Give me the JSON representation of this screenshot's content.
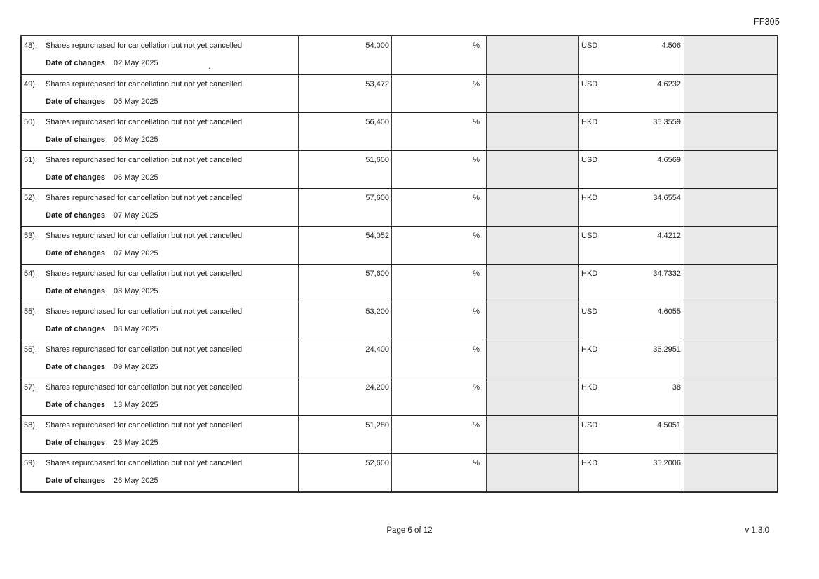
{
  "page": {
    "form_code": "FF305",
    "footer": {
      "page_indicator": "Page 6 of 12",
      "version": "v 1.3.0"
    },
    "stray_mark": "."
  },
  "table": {
    "rows": [
      {
        "number": "48).",
        "description": "Shares repurchased for cancellation but not yet cancelled",
        "quantity": "54,000",
        "percent": "%",
        "currency": "USD",
        "price": "4.506",
        "date_label": "Date of changes",
        "date": "02 May 2025"
      },
      {
        "number": "49).",
        "description": "Shares repurchased for cancellation but not yet cancelled",
        "quantity": "53,472",
        "percent": "%",
        "currency": "USD",
        "price": "4.6232",
        "date_label": "Date of changes",
        "date": "05 May 2025"
      },
      {
        "number": "50).",
        "description": "Shares repurchased for cancellation but not yet cancelled",
        "quantity": "56,400",
        "percent": "%",
        "currency": "HKD",
        "price": "35.3559",
        "date_label": "Date of changes",
        "date": "06 May 2025"
      },
      {
        "number": "51).",
        "description": "Shares repurchased for cancellation but not yet cancelled",
        "quantity": "51,600",
        "percent": "%",
        "currency": "USD",
        "price": "4.6569",
        "date_label": "Date of changes",
        "date": "06 May 2025"
      },
      {
        "number": "52).",
        "description": "Shares repurchased for cancellation but not yet cancelled",
        "quantity": "57,600",
        "percent": "%",
        "currency": "HKD",
        "price": "34.6554",
        "date_label": "Date of changes",
        "date": "07 May 2025"
      },
      {
        "number": "53).",
        "description": "Shares repurchased for cancellation but not yet cancelled",
        "quantity": "54,052",
        "percent": "%",
        "currency": "USD",
        "price": "4.4212",
        "date_label": "Date of changes",
        "date": "07 May 2025"
      },
      {
        "number": "54).",
        "description": "Shares repurchased for cancellation but not yet cancelled",
        "quantity": "57,600",
        "percent": "%",
        "currency": "HKD",
        "price": "34.7332",
        "date_label": "Date of changes",
        "date": "08 May 2025"
      },
      {
        "number": "55).",
        "description": "Shares repurchased for cancellation but not yet cancelled",
        "quantity": "53,200",
        "percent": "%",
        "currency": "USD",
        "price": "4.6055",
        "date_label": "Date of changes",
        "date": "08 May 2025"
      },
      {
        "number": "56).",
        "description": "Shares repurchased for cancellation but not yet cancelled",
        "quantity": "24,400",
        "percent": "%",
        "currency": "HKD",
        "price": "36.2951",
        "date_label": "Date of changes",
        "date": "09 May 2025"
      },
      {
        "number": "57).",
        "description": "Shares repurchased for cancellation but not yet cancelled",
        "quantity": "24,200",
        "percent": "%",
        "currency": "HKD",
        "price": "38",
        "date_label": "Date of changes",
        "date": "13 May 2025"
      },
      {
        "number": "58).",
        "description": "Shares repurchased for cancellation but not yet cancelled",
        "quantity": "51,280",
        "percent": "%",
        "currency": "USD",
        "price": "4.5051",
        "date_label": "Date of changes",
        "date": "23 May 2025"
      },
      {
        "number": "59).",
        "description": "Shares repurchased for cancellation but not yet cancelled",
        "quantity": "52,600",
        "percent": "%",
        "currency": "HKD",
        "price": "35.2006",
        "date_label": "Date of changes",
        "date": "26 May 2025"
      }
    ]
  },
  "colors": {
    "cell_shading": "#e9e9e9",
    "border": "#2d2d2d",
    "text": "#1c1c1c"
  }
}
